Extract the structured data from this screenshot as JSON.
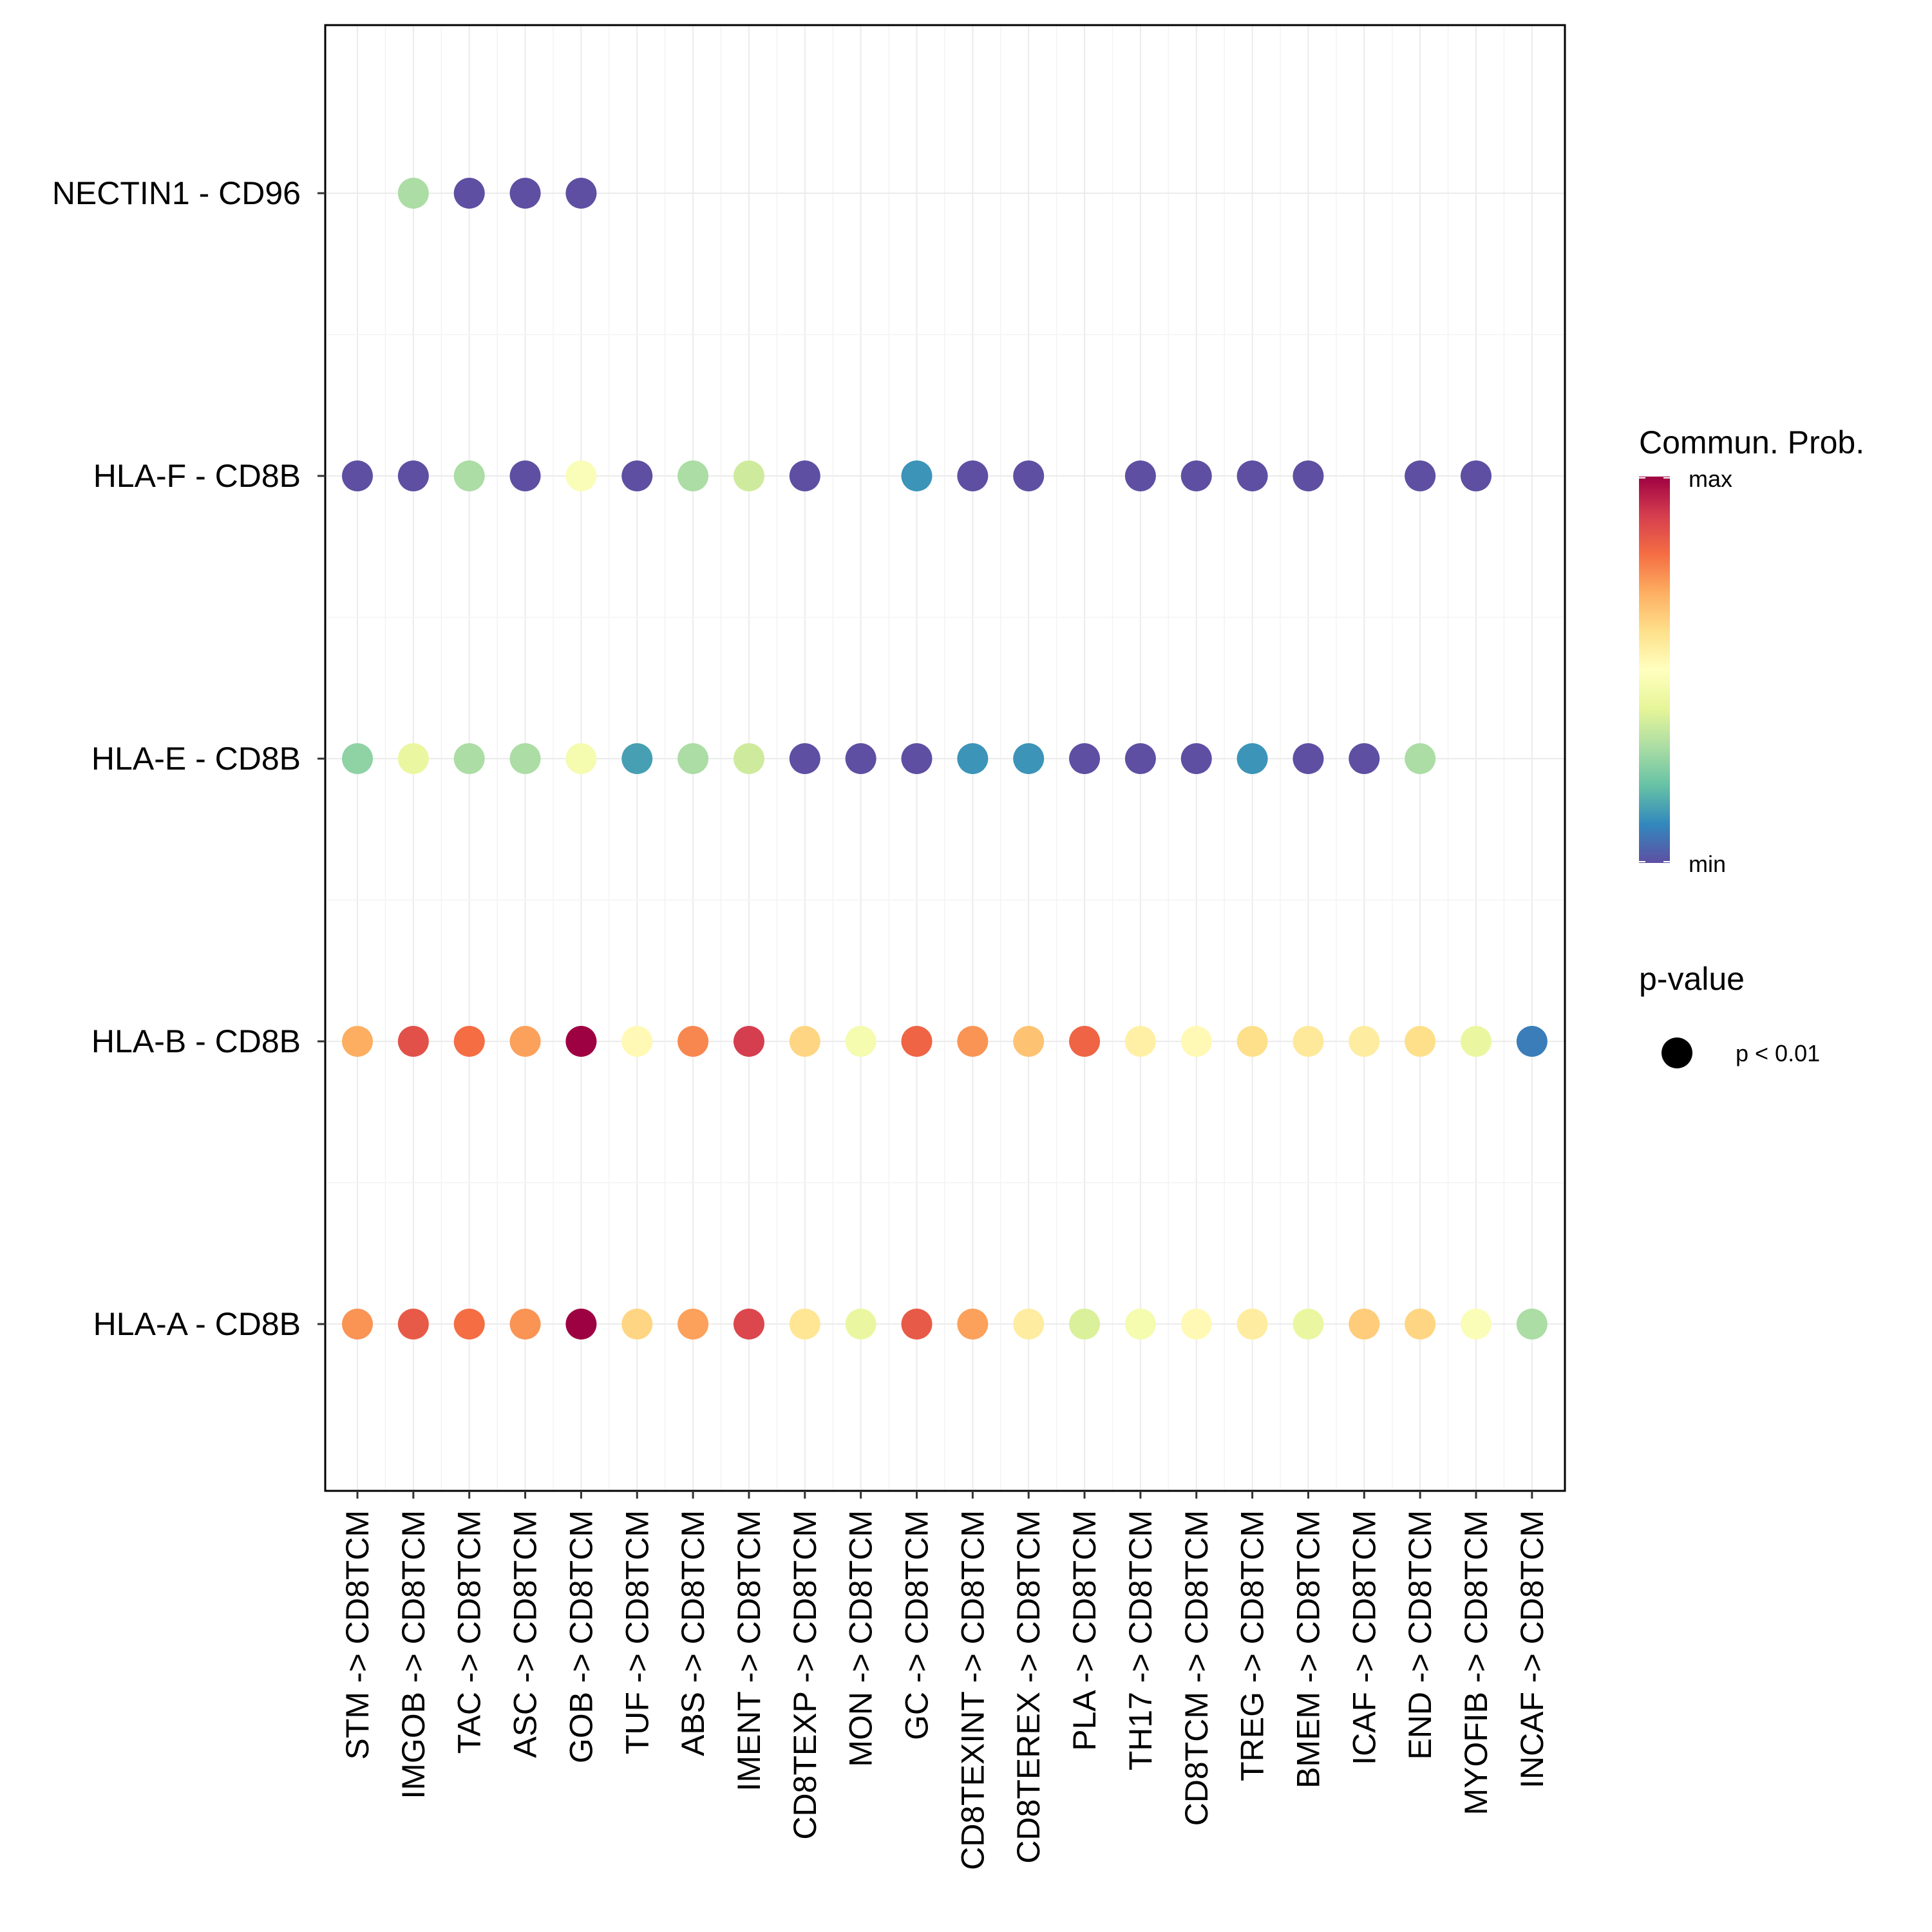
{
  "chart_data": {
    "type": "bubble-dot",
    "title": "",
    "xlabel": "",
    "ylabel": "",
    "categories": [
      "STM -> CD8TCM",
      "IMGOB -> CD8TCM",
      "TAC -> CD8TCM",
      "ASC -> CD8TCM",
      "GOB -> CD8TCM",
      "TUF -> CD8TCM",
      "ABS -> CD8TCM",
      "IMENT -> CD8TCM",
      "CD8TEXP -> CD8TCM",
      "MON -> CD8TCM",
      "GC -> CD8TCM",
      "CD8TEXINT -> CD8TCM",
      "CD8TEREX -> CD8TCM",
      "PLA -> CD8TCM",
      "TH17 -> CD8TCM",
      "CD8TCM -> CD8TCM",
      "TREG -> CD8TCM",
      "BMEM -> CD8TCM",
      "ICAF -> CD8TCM",
      "END -> CD8TCM",
      "MYOFIB -> CD8TCM",
      "INCAF -> CD8TCM"
    ],
    "rows": [
      "NECTIN1 - CD96",
      "HLA-F - CD8B",
      "HLA-E - CD8B",
      "HLA-B - CD8B",
      "HLA-A - CD8B"
    ],
    "values_note": "relative communication probability, 0 = min, 1 = max; null = no significant interaction",
    "series": [
      {
        "name": "NECTIN1 - CD96",
        "values": [
          null,
          0.3,
          0.0,
          0.0,
          0.0,
          null,
          null,
          null,
          null,
          null,
          null,
          null,
          null,
          null,
          null,
          null,
          null,
          null,
          null,
          null,
          null,
          null
        ]
      },
      {
        "name": "HLA-F - CD8B",
        "values": [
          0.0,
          0.0,
          0.3,
          0.0,
          0.48,
          0.0,
          0.3,
          0.36,
          0.0,
          null,
          0.12,
          0.0,
          0.0,
          null,
          0.0,
          0.0,
          0.0,
          0.0,
          null,
          0.0,
          0.0,
          null
        ]
      },
      {
        "name": "HLA-E - CD8B",
        "values": [
          0.26,
          0.42,
          0.3,
          0.3,
          0.46,
          0.14,
          0.3,
          0.36,
          0.0,
          0.0,
          0.0,
          0.12,
          0.12,
          0.0,
          0.0,
          0.0,
          0.12,
          0.0,
          0.0,
          0.3,
          null,
          null
        ]
      },
      {
        "name": "HLA-B - CD8B",
        "values": [
          0.7,
          0.86,
          0.8,
          0.72,
          1.0,
          0.52,
          0.76,
          0.9,
          0.62,
          0.46,
          0.82,
          0.74,
          0.66,
          0.82,
          0.55,
          0.52,
          0.6,
          0.57,
          0.56,
          0.6,
          0.42,
          0.08
        ]
      },
      {
        "name": "HLA-A - CD8B",
        "values": [
          0.74,
          0.84,
          0.8,
          0.74,
          1.0,
          0.62,
          0.72,
          0.88,
          0.58,
          0.42,
          0.84,
          0.72,
          0.56,
          0.38,
          0.46,
          0.52,
          0.56,
          0.42,
          0.64,
          0.62,
          0.48,
          0.3
        ]
      }
    ],
    "legend_color": {
      "title": "Commun. Prob.",
      "max_label": "max",
      "min_label": "min",
      "palette": [
        "#5E4FA2",
        "#3288BD",
        "#66C2A5",
        "#ABDDA4",
        "#E6F598",
        "#FFFFBF",
        "#FEE08B",
        "#FDAE61",
        "#F46D43",
        "#D53E4F",
        "#9E0142"
      ]
    },
    "legend_size": {
      "title": "p-value",
      "label": "p < 0.01"
    },
    "grid": true,
    "legend_position": "right"
  }
}
